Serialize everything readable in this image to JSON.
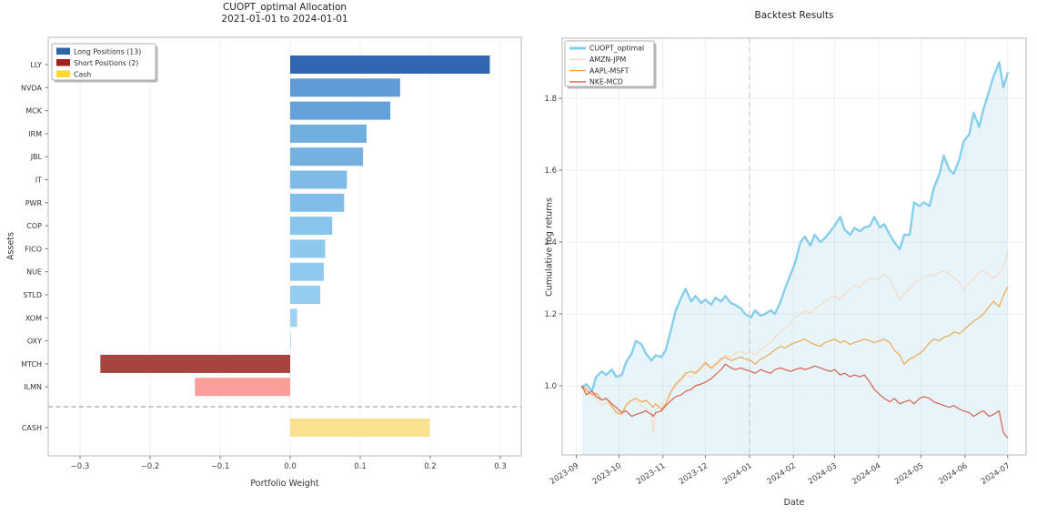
{
  "allocation": {
    "title_line1": "CUOPT_optimal Allocation",
    "title_line2": "2021-01-01 to 2024-01-01",
    "xlabel": "Portfolio Weight",
    "ylabel": "Assets"
  },
  "backtest": {
    "title": "Backtest Results",
    "xlabel": "Date",
    "ylabel": "Cumulative log returns"
  },
  "chart_data": [
    {
      "id": "allocation",
      "type": "bar",
      "orientation": "horizontal",
      "title": "CUOPT_optimal Allocation 2021-01-01 to 2024-01-01",
      "xlabel": "Portfolio Weight",
      "ylabel": "Assets",
      "xlim": [
        -0.345,
        0.33
      ],
      "x_ticks": [
        -0.3,
        -0.2,
        -0.1,
        0.0,
        0.1,
        0.2,
        0.3
      ],
      "grid": true,
      "categories": [
        "LLY",
        "NVDA",
        "MCK",
        "IRM",
        "JBL",
        "IT",
        "PWR",
        "COP",
        "FICO",
        "NUE",
        "STLD",
        "XOM",
        "OXY",
        "MTCH",
        "ILMN",
        "CASH"
      ],
      "values": [
        0.285,
        0.157,
        0.143,
        0.109,
        0.104,
        0.081,
        0.077,
        0.06,
        0.05,
        0.048,
        0.043,
        0.01,
        0.001,
        -0.271,
        -0.136,
        0.199
      ],
      "bar_colors": [
        "#3366b0",
        "#5f9cd7",
        "#64a1da",
        "#70aede",
        "#74b1e0",
        "#7ebce6",
        "#81bee7",
        "#89c5eb",
        "#8dc8ed",
        "#8fcaee",
        "#93cdef",
        "#9dd4f3",
        "#a3d8f5",
        "#a84440",
        "#fb9e99",
        "#f9e08e"
      ],
      "separator_after": "ILMN",
      "separator_color": "#8f8f8f",
      "legend_position": "upper left",
      "legend": [
        {
          "label": "Long Positions (13)",
          "color": "#2a66a5"
        },
        {
          "label": "Short Positions (2)",
          "color": "#a11f1f"
        },
        {
          "label": "Cash",
          "color": "#fed832"
        }
      ]
    },
    {
      "id": "backtest",
      "type": "line",
      "title": "Backtest Results",
      "xlabel": "Date",
      "ylabel": "Cumulative log returns",
      "ylim": [
        0.81,
        1.97
      ],
      "y_ticks": [
        1.0,
        1.2,
        1.4,
        1.6,
        1.8
      ],
      "x_ticks": [
        "2023-09",
        "2023-10",
        "2023-11",
        "2023-12",
        "2024-01",
        "2024-02",
        "2024-03",
        "2024-04",
        "2024-05",
        "2024-06",
        "2024-07"
      ],
      "xlim": [
        "2023-08-22",
        "2024-07-14"
      ],
      "grid": true,
      "legend_position": "upper left",
      "vline_date": "2024-01-01",
      "vline_color": "#cdcdcd",
      "dates": [
        "2023-09-05",
        "2023-09-08",
        "2023-09-12",
        "2023-09-15",
        "2023-09-19",
        "2023-09-22",
        "2023-09-26",
        "2023-09-29",
        "2023-10-03",
        "2023-10-06",
        "2023-10-10",
        "2023-10-13",
        "2023-10-17",
        "2023-10-20",
        "2023-10-24",
        "2023-10-25",
        "2023-10-27",
        "2023-10-31",
        "2023-11-03",
        "2023-11-07",
        "2023-11-10",
        "2023-11-14",
        "2023-11-17",
        "2023-11-21",
        "2023-11-24",
        "2023-11-28",
        "2023-12-01",
        "2023-12-05",
        "2023-12-08",
        "2023-12-12",
        "2023-12-15",
        "2023-12-19",
        "2023-12-22",
        "2023-12-26",
        "2023-12-29",
        "2024-01-02",
        "2024-01-05",
        "2024-01-09",
        "2024-01-12",
        "2024-01-16",
        "2024-01-19",
        "2024-01-23",
        "2024-01-26",
        "2024-01-30",
        "2024-02-02",
        "2024-02-06",
        "2024-02-09",
        "2024-02-13",
        "2024-02-16",
        "2024-02-20",
        "2024-02-23",
        "2024-02-27",
        "2024-03-01",
        "2024-03-05",
        "2024-03-08",
        "2024-03-12",
        "2024-03-15",
        "2024-03-19",
        "2024-03-22",
        "2024-03-26",
        "2024-03-29",
        "2024-04-02",
        "2024-04-05",
        "2024-04-09",
        "2024-04-12",
        "2024-04-16",
        "2024-04-19",
        "2024-04-23",
        "2024-04-26",
        "2024-04-30",
        "2024-05-03",
        "2024-05-07",
        "2024-05-10",
        "2024-05-14",
        "2024-05-17",
        "2024-05-21",
        "2024-05-24",
        "2024-05-28",
        "2024-05-31",
        "2024-06-04",
        "2024-06-07",
        "2024-06-11",
        "2024-06-14",
        "2024-06-18",
        "2024-06-21",
        "2024-06-25",
        "2024-06-28",
        "2024-07-01"
      ],
      "series": [
        {
          "name": "CUOPT_optimal",
          "color": "#87ceeb",
          "line_width": 2.4,
          "fill_below": true,
          "fill_color": "rgba(135,206,235,0.20)",
          "values": [
            0.995,
            1.005,
            0.985,
            1.025,
            1.04,
            1.03,
            1.045,
            1.025,
            1.03,
            1.065,
            1.09,
            1.125,
            1.115,
            1.09,
            1.07,
            1.075,
            1.085,
            1.08,
            1.1,
            1.16,
            1.21,
            1.245,
            1.27,
            1.235,
            1.25,
            1.23,
            1.24,
            1.225,
            1.245,
            1.235,
            1.25,
            1.23,
            1.225,
            1.215,
            1.2,
            1.19,
            1.21,
            1.195,
            1.2,
            1.21,
            1.2,
            1.235,
            1.27,
            1.31,
            1.34,
            1.4,
            1.415,
            1.39,
            1.42,
            1.4,
            1.41,
            1.43,
            1.445,
            1.47,
            1.435,
            1.42,
            1.44,
            1.43,
            1.44,
            1.445,
            1.47,
            1.44,
            1.45,
            1.42,
            1.4,
            1.38,
            1.42,
            1.42,
            1.51,
            1.5,
            1.51,
            1.5,
            1.55,
            1.59,
            1.64,
            1.6,
            1.59,
            1.63,
            1.68,
            1.7,
            1.76,
            1.72,
            1.77,
            1.82,
            1.86,
            1.9,
            1.83,
            1.87
          ]
        },
        {
          "name": "AMZN-JPM",
          "color": "#f8d9c0",
          "line_width": 1.2,
          "fill_below": false,
          "values": [
            1.0,
            0.985,
            0.975,
            0.96,
            0.945,
            0.955,
            0.94,
            0.93,
            0.925,
            0.95,
            0.96,
            0.955,
            0.945,
            0.935,
            0.93,
            0.868,
            0.935,
            0.95,
            0.965,
            0.985,
            1.0,
            1.015,
            1.03,
            1.025,
            1.04,
            1.05,
            1.06,
            1.045,
            1.055,
            1.07,
            1.085,
            1.08,
            1.09,
            1.095,
            1.09,
            1.095,
            1.085,
            1.1,
            1.11,
            1.12,
            1.135,
            1.15,
            1.16,
            1.175,
            1.19,
            1.2,
            1.21,
            1.2,
            1.215,
            1.225,
            1.235,
            1.245,
            1.25,
            1.24,
            1.255,
            1.27,
            1.28,
            1.275,
            1.29,
            1.3,
            1.295,
            1.3,
            1.31,
            1.295,
            1.27,
            1.24,
            1.255,
            1.27,
            1.285,
            1.295,
            1.3,
            1.31,
            1.305,
            1.315,
            1.32,
            1.31,
            1.3,
            1.29,
            1.27,
            1.285,
            1.3,
            1.315,
            1.32,
            1.31,
            1.3,
            1.315,
            1.33,
            1.375
          ]
        },
        {
          "name": "AAPL-MSFT",
          "color": "#f0a64f",
          "line_width": 1.2,
          "fill_below": false,
          "values": [
            1.0,
            0.99,
            0.975,
            0.98,
            0.96,
            0.965,
            0.945,
            0.925,
            0.92,
            0.945,
            0.96,
            0.965,
            0.955,
            0.96,
            0.945,
            0.94,
            0.95,
            0.935,
            0.95,
            0.985,
            1.005,
            1.02,
            1.035,
            1.04,
            1.035,
            1.05,
            1.065,
            1.05,
            1.06,
            1.075,
            1.08,
            1.07,
            1.075,
            1.08,
            1.075,
            1.07,
            1.06,
            1.075,
            1.08,
            1.09,
            1.1,
            1.11,
            1.105,
            1.115,
            1.12,
            1.125,
            1.13,
            1.12,
            1.115,
            1.11,
            1.12,
            1.125,
            1.13,
            1.12,
            1.125,
            1.115,
            1.12,
            1.125,
            1.13,
            1.125,
            1.12,
            1.125,
            1.13,
            1.12,
            1.1,
            1.085,
            1.06,
            1.075,
            1.08,
            1.09,
            1.1,
            1.12,
            1.13,
            1.125,
            1.135,
            1.14,
            1.15,
            1.145,
            1.155,
            1.17,
            1.18,
            1.19,
            1.2,
            1.22,
            1.235,
            1.22,
            1.25,
            1.275
          ]
        },
        {
          "name": "NKE-MCD",
          "color": "#d95f4b",
          "line_width": 1.2,
          "fill_below": false,
          "values": [
            1.0,
            0.975,
            0.985,
            0.97,
            0.96,
            0.965,
            0.95,
            0.94,
            0.925,
            0.93,
            0.915,
            0.92,
            0.925,
            0.93,
            0.92,
            0.915,
            0.925,
            0.93,
            0.945,
            0.96,
            0.97,
            0.975,
            0.985,
            0.99,
            1.0,
            1.005,
            1.01,
            1.02,
            1.03,
            1.045,
            1.06,
            1.05,
            1.045,
            1.05,
            1.045,
            1.04,
            1.035,
            1.045,
            1.04,
            1.035,
            1.045,
            1.05,
            1.045,
            1.04,
            1.045,
            1.05,
            1.045,
            1.05,
            1.055,
            1.05,
            1.045,
            1.04,
            1.045,
            1.03,
            1.035,
            1.025,
            1.03,
            1.025,
            1.03,
            1.01,
            0.99,
            0.975,
            0.965,
            0.955,
            0.965,
            0.95,
            0.955,
            0.96,
            0.95,
            0.965,
            0.97,
            0.965,
            0.955,
            0.95,
            0.945,
            0.94,
            0.945,
            0.935,
            0.93,
            0.925,
            0.915,
            0.925,
            0.93,
            0.915,
            0.92,
            0.93,
            0.87,
            0.855
          ]
        }
      ]
    }
  ]
}
